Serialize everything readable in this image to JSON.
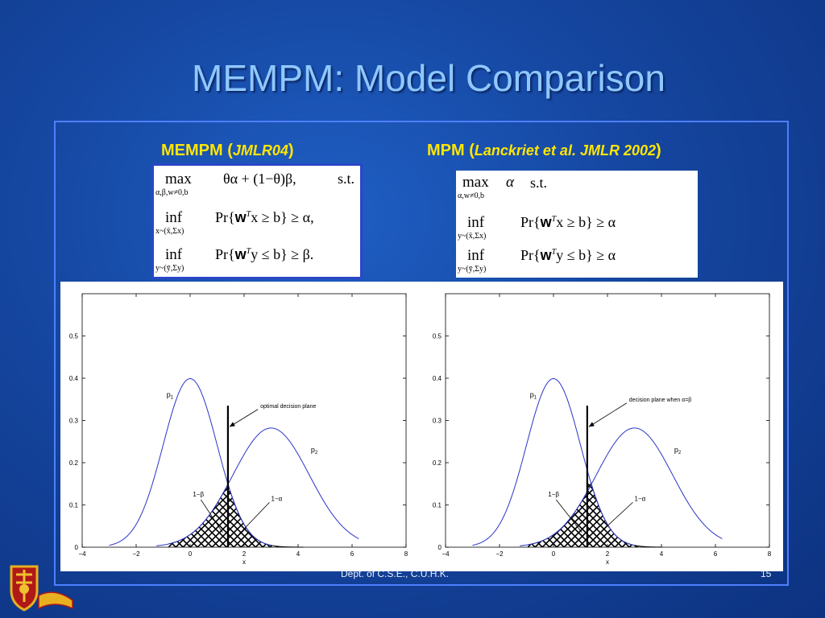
{
  "slide": {
    "title": "MEMPM: Model Comparison",
    "footer_center": "Dept. of C.S.E., C.U.H.K.",
    "page_number": "15"
  },
  "mempm": {
    "heading_main": "MEMPM (",
    "heading_cite": "JMLR04",
    "heading_close": ")",
    "row1_op": "max",
    "row1_sub": "α,β,w≠0,b",
    "row1_expr": "θα + (1−θ)β,",
    "row1_st": "s.t.",
    "row2_op": "inf",
    "row2_sub": "x~(x̄,Σx)",
    "row2_expr_pre": "Pr{",
    "row2_w": "w",
    "row2_T": "T",
    "row2_expr_post": "x ≥ b} ≥ α,",
    "row3_op": "inf",
    "row3_sub": "y~(ȳ,Σy)",
    "row3_expr_pre": "Pr{",
    "row3_w": "w",
    "row3_T": "T",
    "row3_expr_post": "y ≤ b} ≥ β."
  },
  "mpm": {
    "heading_main": "MPM (",
    "heading_cite": "Lanckriet et al. JMLR 2002",
    "heading_close": ")",
    "row1_op": "max",
    "row1_var": "α",
    "row1_sub": "α,w≠0,b",
    "row1_st": "s.t.",
    "row2_op": "inf",
    "row2_sub": "y~(x̄,Σx)",
    "row2_expr_pre": "Pr{",
    "row2_w": "w",
    "row2_T": "T",
    "row2_expr_post": "x ≥ b} ≥ α",
    "row3_op": "inf",
    "row3_sub": "y~(ȳ,Σy)",
    "row3_expr_pre": "Pr{",
    "row3_w": "w",
    "row3_T": "T",
    "row3_expr_post": "y ≤ b} ≥ α"
  },
  "colors": {
    "curve": "#2b35c8",
    "hatch": "#000000",
    "heading": "#ffe600",
    "title": "#8ec8ff"
  },
  "chart_data": [
    {
      "type": "line",
      "title": "",
      "xlabel": "x",
      "ylabel": "",
      "xlim": [
        -4,
        8
      ],
      "ylim": [
        0,
        0.6
      ],
      "xticks": [
        "−4",
        "−2",
        "0",
        "2",
        "4",
        "6",
        "8"
      ],
      "yticks": [
        "0",
        "0.1",
        "0.2",
        "0.3",
        "0.4",
        "0.5"
      ],
      "series": [
        {
          "name": "p1",
          "label": "p",
          "sub": "1",
          "mean": 0,
          "sd": 1,
          "x_range": [
            -3,
            3
          ]
        },
        {
          "name": "p2",
          "label": "p",
          "sub": "2",
          "mean": 3,
          "sd": 1.414,
          "x_range": [
            -1.25,
            6.25
          ]
        }
      ],
      "decision_x": 1.4,
      "annotations": [
        {
          "text": "optimal decision plane",
          "x": 2.6,
          "y": 0.33
        },
        {
          "text": "1−β",
          "x": 0.1,
          "y": 0.12
        },
        {
          "text": "1−α",
          "x": 3.0,
          "y": 0.11
        }
      ],
      "grid": false
    },
    {
      "type": "line",
      "title": "",
      "xlabel": "x",
      "ylabel": "",
      "xlim": [
        -4,
        8
      ],
      "ylim": [
        0,
        0.6
      ],
      "xticks": [
        "−4",
        "−2",
        "0",
        "2",
        "4",
        "6",
        "8"
      ],
      "yticks": [
        "0",
        "0.1",
        "0.2",
        "0.3",
        "0.4",
        "0.5"
      ],
      "series": [
        {
          "name": "p1",
          "label": "p",
          "sub": "1",
          "mean": 0,
          "sd": 1,
          "x_range": [
            -3,
            3
          ]
        },
        {
          "name": "p2",
          "label": "p",
          "sub": "2",
          "mean": 3,
          "sd": 1.414,
          "x_range": [
            -1.25,
            6.25
          ]
        }
      ],
      "decision_x": 1.25,
      "annotations": [
        {
          "text": "decision plane when α=β",
          "x": 2.8,
          "y": 0.345
        },
        {
          "text": "1−β",
          "x": -0.2,
          "y": 0.12
        },
        {
          "text": "1−α",
          "x": 3.0,
          "y": 0.11
        }
      ],
      "grid": false
    }
  ]
}
